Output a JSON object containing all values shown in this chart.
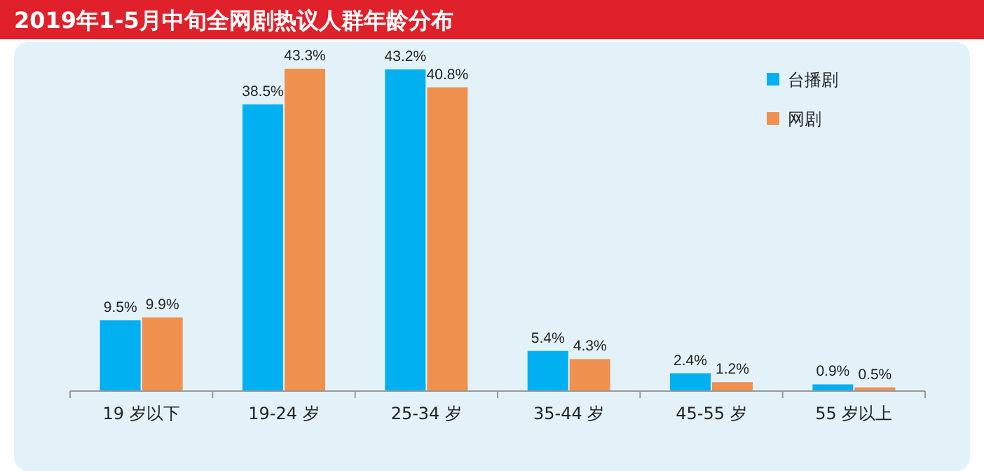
{
  "chart_data": {
    "type": "bar",
    "title": "2019年1-5月中旬全网剧热议人群年龄分布",
    "categories": [
      "19 岁以下",
      "19-24 岁",
      "25-34 岁",
      "35-44 岁",
      "45-55 岁",
      "55 岁以上"
    ],
    "series": [
      {
        "name": "台播剧",
        "color": "#00b0f0",
        "values": [
          9.5,
          38.5,
          43.2,
          5.4,
          2.4,
          0.9
        ],
        "value_labels": [
          "9.5%",
          "38.5%",
          "43.2%",
          "5.4%",
          "2.4%",
          "0.9%"
        ]
      },
      {
        "name": "网剧",
        "color": "#f0904f",
        "values": [
          9.9,
          43.3,
          40.8,
          4.3,
          1.2,
          0.5
        ],
        "value_labels": [
          "9.9%",
          "43.3%",
          "40.8%",
          "4.3%",
          "1.2%",
          "0.5%"
        ]
      }
    ],
    "legend": "top right",
    "grid": false
  }
}
